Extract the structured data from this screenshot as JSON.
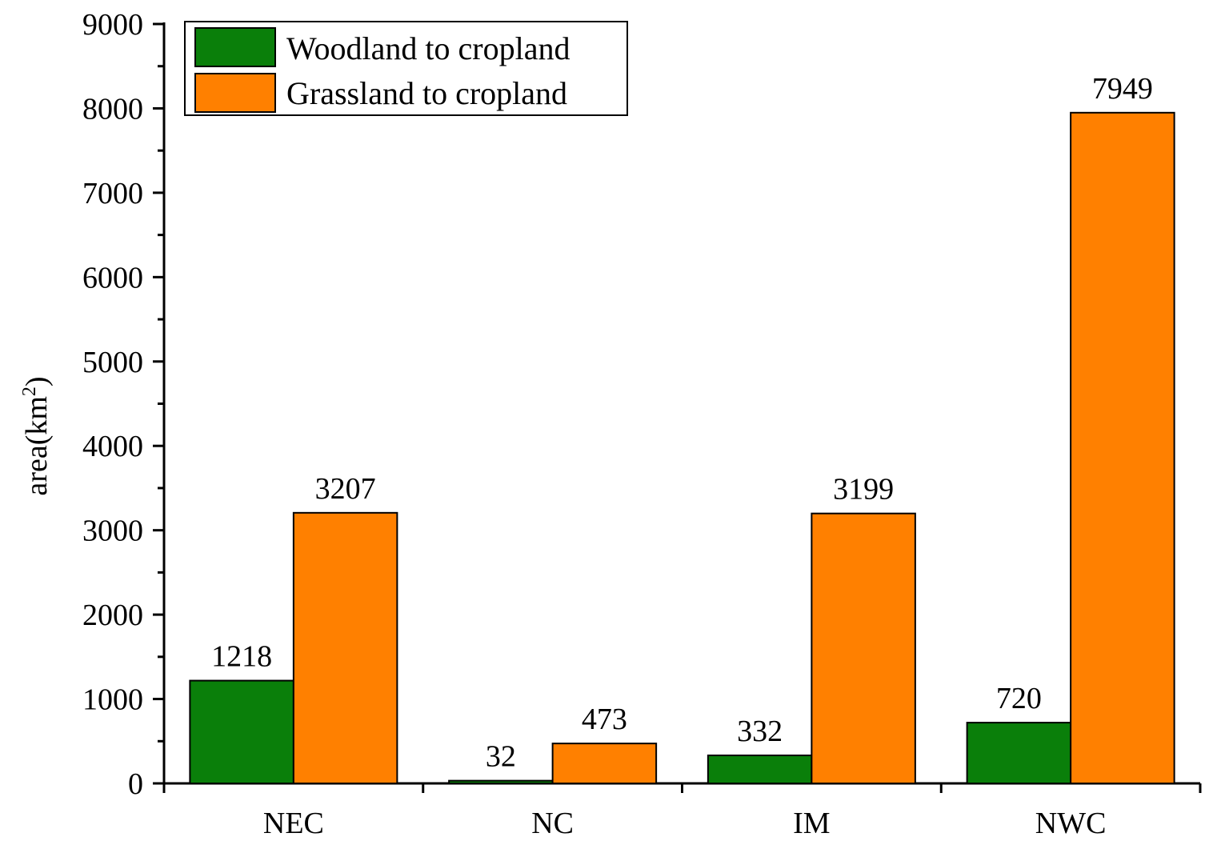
{
  "chart_data": {
    "type": "bar",
    "categories": [
      "NEC",
      "NC",
      "IM",
      "NWC"
    ],
    "series": [
      {
        "name": "Woodland to cropland",
        "values": [
          1218,
          32,
          332,
          720
        ],
        "color": "#0a7f0a"
      },
      {
        "name": "Grassland to cropland",
        "values": [
          3207,
          473,
          3199,
          7949
        ],
        "color": "#ff8000"
      }
    ],
    "data_labels": [
      [
        "1218",
        "32",
        "332",
        "720"
      ],
      [
        "3207",
        "473",
        "3199",
        "7949"
      ]
    ],
    "ylabel": {
      "base": "area(km",
      "sup": "2",
      "close": ")"
    },
    "xlabel": "",
    "title": "",
    "ylim": [
      0,
      9000
    ],
    "yticks": [
      0,
      1000,
      2000,
      3000,
      4000,
      5000,
      6000,
      7000,
      8000,
      9000
    ],
    "ytick_labels": [
      "0",
      "1000",
      "2000",
      "3000",
      "4000",
      "5000",
      "6000",
      "7000",
      "8000",
      "9000"
    ],
    "grid": false,
    "legend": {
      "position": "top-left",
      "entries": [
        "Woodland to cropland",
        "Grassland to cropland"
      ]
    }
  }
}
